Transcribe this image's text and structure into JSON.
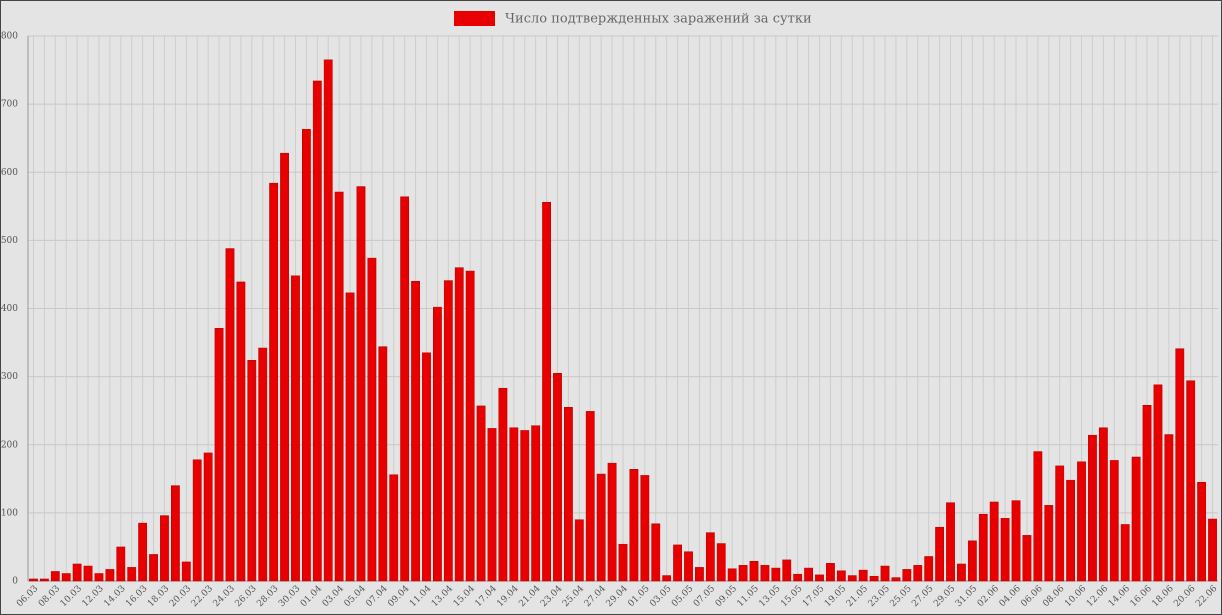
{
  "chart_data": {
    "type": "bar",
    "legend": "Число подтвержденных заражений за сутки",
    "color": "#e80000",
    "categories": [
      "06.03",
      null,
      "08.03",
      null,
      "10.03",
      null,
      "12.03",
      null,
      "14.03",
      null,
      "16.03",
      null,
      "18.03",
      null,
      "20.03",
      null,
      "22.03",
      null,
      "24.03",
      null,
      "26.03",
      null,
      "28.03",
      null,
      "30.03",
      null,
      "01.04",
      null,
      "03.04",
      null,
      "05.04",
      null,
      "07.04",
      null,
      "09.04",
      null,
      "11.04",
      null,
      "13.04",
      null,
      "15.04",
      null,
      "17.04",
      null,
      "19.04",
      null,
      "21.04",
      null,
      "23.04",
      null,
      "25.04",
      null,
      "27.04",
      null,
      "29.04",
      null,
      "01.05",
      null,
      "03.05",
      null,
      "05.05",
      null,
      "07.05",
      null,
      "09.05",
      null,
      "11.05",
      null,
      "13.05",
      null,
      "15.05",
      null,
      "17.05",
      null,
      "19.05",
      null,
      "21.05",
      null,
      "23.05",
      null,
      "25.05",
      null,
      "27.05",
      null,
      "29.05",
      null,
      "31.05",
      null,
      "02.06",
      null,
      "04.06",
      null,
      "06.06",
      null,
      "08.06",
      null,
      "10.06",
      null,
      "12.06",
      null,
      "14.06",
      null,
      "16.06",
      null,
      "18.06",
      null,
      "20.06",
      null,
      "22.06"
    ],
    "values": [
      3,
      3,
      14,
      11,
      25,
      22,
      11,
      17,
      50,
      20,
      85,
      39,
      96,
      140,
      28,
      178,
      188,
      371,
      488,
      439,
      324,
      342,
      584,
      628,
      448,
      663,
      734,
      765,
      571,
      423,
      579,
      474,
      344,
      156,
      564,
      440,
      335,
      402,
      441,
      460,
      455,
      257,
      224,
      283,
      225,
      221,
      228,
      556,
      305,
      255,
      90,
      249,
      157,
      173,
      54,
      164,
      155,
      84,
      8,
      53,
      43,
      20,
      71,
      55,
      18,
      23,
      29,
      23,
      19,
      31,
      10,
      19,
      9,
      26,
      15,
      8,
      16,
      7,
      22,
      5,
      17,
      23,
      36,
      79,
      115,
      25,
      59,
      98,
      116,
      92,
      118,
      67,
      190,
      111,
      169,
      148,
      175,
      214,
      225,
      177,
      83,
      182,
      258,
      288,
      215,
      341,
      294,
      145,
      91
    ],
    "ylim": [
      0,
      800
    ],
    "yticks": [
      0,
      100,
      200,
      300,
      400,
      500,
      600,
      700,
      800
    ],
    "grid": true
  }
}
